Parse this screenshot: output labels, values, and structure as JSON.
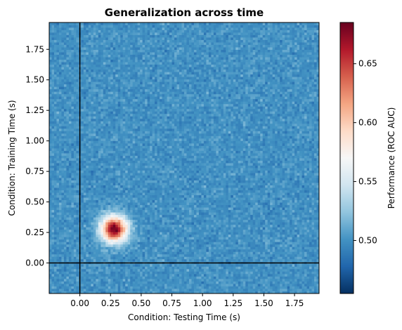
{
  "chart_data": {
    "type": "heatmap",
    "title": "Generalization across time",
    "xlabel": "Condition: Testing Time (s)",
    "ylabel": "Condition: Training Time (s)",
    "xlim": [
      -0.25,
      1.95
    ],
    "ylim": [
      -0.25,
      1.97
    ],
    "x_ticks": [
      {
        "value": 0.0,
        "label": "0.00"
      },
      {
        "value": 0.25,
        "label": "0.25"
      },
      {
        "value": 0.5,
        "label": "0.50"
      },
      {
        "value": 0.75,
        "label": "0.75"
      },
      {
        "value": 1.0,
        "label": "1.00"
      },
      {
        "value": 1.25,
        "label": "1.25"
      },
      {
        "value": 1.5,
        "label": "1.50"
      },
      {
        "value": 1.75,
        "label": "1.75"
      }
    ],
    "y_ticks": [
      {
        "value": 0.0,
        "label": "0.00"
      },
      {
        "value": 0.25,
        "label": "0.25"
      },
      {
        "value": 0.5,
        "label": "0.50"
      },
      {
        "value": 0.75,
        "label": "0.75"
      },
      {
        "value": 1.0,
        "label": "1.00"
      },
      {
        "value": 1.25,
        "label": "1.25"
      },
      {
        "value": 1.5,
        "label": "1.50"
      },
      {
        "value": 1.75,
        "label": "1.75"
      }
    ],
    "colorbar": {
      "label": "Performance (ROC AUC)",
      "colormap": "RdBu_r",
      "range": [
        0.455,
        0.685
      ],
      "ticks": [
        {
          "value": 0.5,
          "label": "0.50"
        },
        {
          "value": 0.55,
          "label": "0.55"
        },
        {
          "value": 0.6,
          "label": "0.60"
        },
        {
          "value": 0.65,
          "label": "0.65"
        }
      ]
    },
    "grid": false,
    "reference_lines": [
      {
        "orientation": "vertical",
        "value": 0.0,
        "color": "#000000"
      },
      {
        "orientation": "horizontal",
        "value": 0.0,
        "color": "#000000"
      }
    ],
    "pattern": {
      "baseline": 0.5,
      "noise_sd": 0.012,
      "peak": {
        "testing_time": 0.28,
        "training_time": 0.28,
        "value": 0.68
      }
    }
  }
}
